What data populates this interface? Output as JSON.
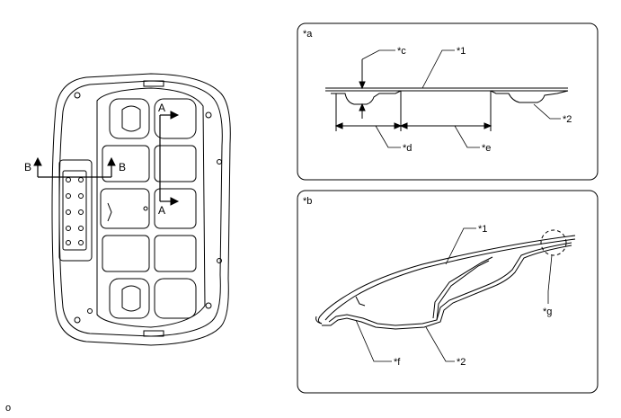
{
  "main_view": {
    "section_a_label": "A",
    "section_b_label": "B"
  },
  "detail_a": {
    "panel_label": "*a",
    "callouts": {
      "c": "*c",
      "d": "*d",
      "e": "*e",
      "part1": "*1",
      "part2": "*2"
    }
  },
  "detail_b": {
    "panel_label": "*b",
    "callouts": {
      "part1": "*1",
      "part2": "*2",
      "f": "*f",
      "g": "*g"
    }
  },
  "figure_code": "o"
}
